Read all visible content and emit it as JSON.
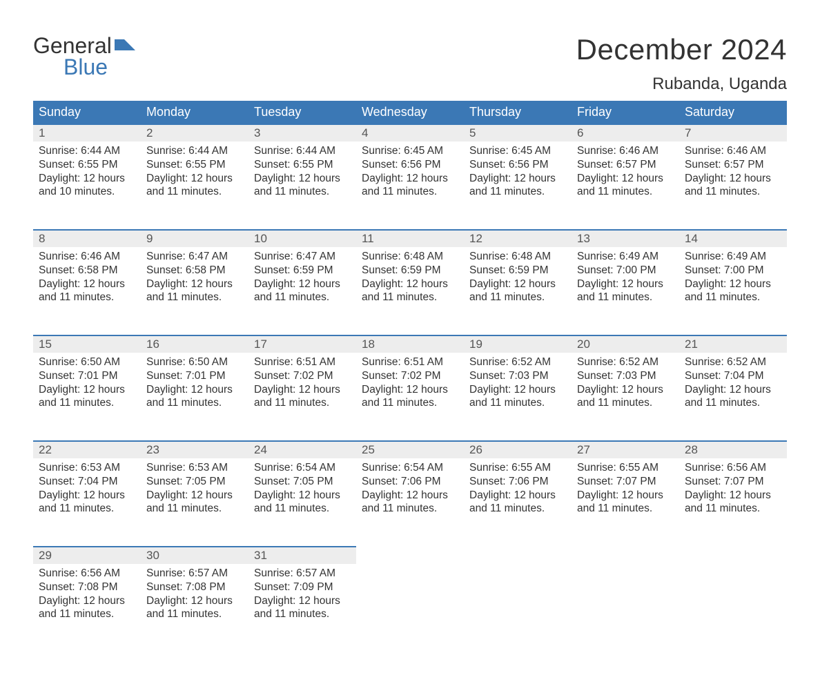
{
  "logo": {
    "text1": "General",
    "text2": "Blue",
    "icon_color": "#3b78b5"
  },
  "title": "December 2024",
  "location": "Rubanda, Uganda",
  "colors": {
    "header_bg": "#3b78b5",
    "header_text": "#ffffff",
    "daynum_bg": "#ededed",
    "daynum_border": "#3b78b5",
    "body_text": "#333333",
    "page_bg": "#ffffff"
  },
  "typography": {
    "title_fontsize": 42,
    "location_fontsize": 24,
    "dayheader_fontsize": 18,
    "daynum_fontsize": 17,
    "cell_fontsize": 15.5
  },
  "weekdays": [
    "Sunday",
    "Monday",
    "Tuesday",
    "Wednesday",
    "Thursday",
    "Friday",
    "Saturday"
  ],
  "weeks": [
    [
      {
        "day": "1",
        "sunrise": "Sunrise: 6:44 AM",
        "sunset": "Sunset: 6:55 PM",
        "daylight1": "Daylight: 12 hours",
        "daylight2": "and 10 minutes."
      },
      {
        "day": "2",
        "sunrise": "Sunrise: 6:44 AM",
        "sunset": "Sunset: 6:55 PM",
        "daylight1": "Daylight: 12 hours",
        "daylight2": "and 11 minutes."
      },
      {
        "day": "3",
        "sunrise": "Sunrise: 6:44 AM",
        "sunset": "Sunset: 6:55 PM",
        "daylight1": "Daylight: 12 hours",
        "daylight2": "and 11 minutes."
      },
      {
        "day": "4",
        "sunrise": "Sunrise: 6:45 AM",
        "sunset": "Sunset: 6:56 PM",
        "daylight1": "Daylight: 12 hours",
        "daylight2": "and 11 minutes."
      },
      {
        "day": "5",
        "sunrise": "Sunrise: 6:45 AM",
        "sunset": "Sunset: 6:56 PM",
        "daylight1": "Daylight: 12 hours",
        "daylight2": "and 11 minutes."
      },
      {
        "day": "6",
        "sunrise": "Sunrise: 6:46 AM",
        "sunset": "Sunset: 6:57 PM",
        "daylight1": "Daylight: 12 hours",
        "daylight2": "and 11 minutes."
      },
      {
        "day": "7",
        "sunrise": "Sunrise: 6:46 AM",
        "sunset": "Sunset: 6:57 PM",
        "daylight1": "Daylight: 12 hours",
        "daylight2": "and 11 minutes."
      }
    ],
    [
      {
        "day": "8",
        "sunrise": "Sunrise: 6:46 AM",
        "sunset": "Sunset: 6:58 PM",
        "daylight1": "Daylight: 12 hours",
        "daylight2": "and 11 minutes."
      },
      {
        "day": "9",
        "sunrise": "Sunrise: 6:47 AM",
        "sunset": "Sunset: 6:58 PM",
        "daylight1": "Daylight: 12 hours",
        "daylight2": "and 11 minutes."
      },
      {
        "day": "10",
        "sunrise": "Sunrise: 6:47 AM",
        "sunset": "Sunset: 6:59 PM",
        "daylight1": "Daylight: 12 hours",
        "daylight2": "and 11 minutes."
      },
      {
        "day": "11",
        "sunrise": "Sunrise: 6:48 AM",
        "sunset": "Sunset: 6:59 PM",
        "daylight1": "Daylight: 12 hours",
        "daylight2": "and 11 minutes."
      },
      {
        "day": "12",
        "sunrise": "Sunrise: 6:48 AM",
        "sunset": "Sunset: 6:59 PM",
        "daylight1": "Daylight: 12 hours",
        "daylight2": "and 11 minutes."
      },
      {
        "day": "13",
        "sunrise": "Sunrise: 6:49 AM",
        "sunset": "Sunset: 7:00 PM",
        "daylight1": "Daylight: 12 hours",
        "daylight2": "and 11 minutes."
      },
      {
        "day": "14",
        "sunrise": "Sunrise: 6:49 AM",
        "sunset": "Sunset: 7:00 PM",
        "daylight1": "Daylight: 12 hours",
        "daylight2": "and 11 minutes."
      }
    ],
    [
      {
        "day": "15",
        "sunrise": "Sunrise: 6:50 AM",
        "sunset": "Sunset: 7:01 PM",
        "daylight1": "Daylight: 12 hours",
        "daylight2": "and 11 minutes."
      },
      {
        "day": "16",
        "sunrise": "Sunrise: 6:50 AM",
        "sunset": "Sunset: 7:01 PM",
        "daylight1": "Daylight: 12 hours",
        "daylight2": "and 11 minutes."
      },
      {
        "day": "17",
        "sunrise": "Sunrise: 6:51 AM",
        "sunset": "Sunset: 7:02 PM",
        "daylight1": "Daylight: 12 hours",
        "daylight2": "and 11 minutes."
      },
      {
        "day": "18",
        "sunrise": "Sunrise: 6:51 AM",
        "sunset": "Sunset: 7:02 PM",
        "daylight1": "Daylight: 12 hours",
        "daylight2": "and 11 minutes."
      },
      {
        "day": "19",
        "sunrise": "Sunrise: 6:52 AM",
        "sunset": "Sunset: 7:03 PM",
        "daylight1": "Daylight: 12 hours",
        "daylight2": "and 11 minutes."
      },
      {
        "day": "20",
        "sunrise": "Sunrise: 6:52 AM",
        "sunset": "Sunset: 7:03 PM",
        "daylight1": "Daylight: 12 hours",
        "daylight2": "and 11 minutes."
      },
      {
        "day": "21",
        "sunrise": "Sunrise: 6:52 AM",
        "sunset": "Sunset: 7:04 PM",
        "daylight1": "Daylight: 12 hours",
        "daylight2": "and 11 minutes."
      }
    ],
    [
      {
        "day": "22",
        "sunrise": "Sunrise: 6:53 AM",
        "sunset": "Sunset: 7:04 PM",
        "daylight1": "Daylight: 12 hours",
        "daylight2": "and 11 minutes."
      },
      {
        "day": "23",
        "sunrise": "Sunrise: 6:53 AM",
        "sunset": "Sunset: 7:05 PM",
        "daylight1": "Daylight: 12 hours",
        "daylight2": "and 11 minutes."
      },
      {
        "day": "24",
        "sunrise": "Sunrise: 6:54 AM",
        "sunset": "Sunset: 7:05 PM",
        "daylight1": "Daylight: 12 hours",
        "daylight2": "and 11 minutes."
      },
      {
        "day": "25",
        "sunrise": "Sunrise: 6:54 AM",
        "sunset": "Sunset: 7:06 PM",
        "daylight1": "Daylight: 12 hours",
        "daylight2": "and 11 minutes."
      },
      {
        "day": "26",
        "sunrise": "Sunrise: 6:55 AM",
        "sunset": "Sunset: 7:06 PM",
        "daylight1": "Daylight: 12 hours",
        "daylight2": "and 11 minutes."
      },
      {
        "day": "27",
        "sunrise": "Sunrise: 6:55 AM",
        "sunset": "Sunset: 7:07 PM",
        "daylight1": "Daylight: 12 hours",
        "daylight2": "and 11 minutes."
      },
      {
        "day": "28",
        "sunrise": "Sunrise: 6:56 AM",
        "sunset": "Sunset: 7:07 PM",
        "daylight1": "Daylight: 12 hours",
        "daylight2": "and 11 minutes."
      }
    ],
    [
      {
        "day": "29",
        "sunrise": "Sunrise: 6:56 AM",
        "sunset": "Sunset: 7:08 PM",
        "daylight1": "Daylight: 12 hours",
        "daylight2": "and 11 minutes."
      },
      {
        "day": "30",
        "sunrise": "Sunrise: 6:57 AM",
        "sunset": "Sunset: 7:08 PM",
        "daylight1": "Daylight: 12 hours",
        "daylight2": "and 11 minutes."
      },
      {
        "day": "31",
        "sunrise": "Sunrise: 6:57 AM",
        "sunset": "Sunset: 7:09 PM",
        "daylight1": "Daylight: 12 hours",
        "daylight2": "and 11 minutes."
      },
      null,
      null,
      null,
      null
    ]
  ]
}
